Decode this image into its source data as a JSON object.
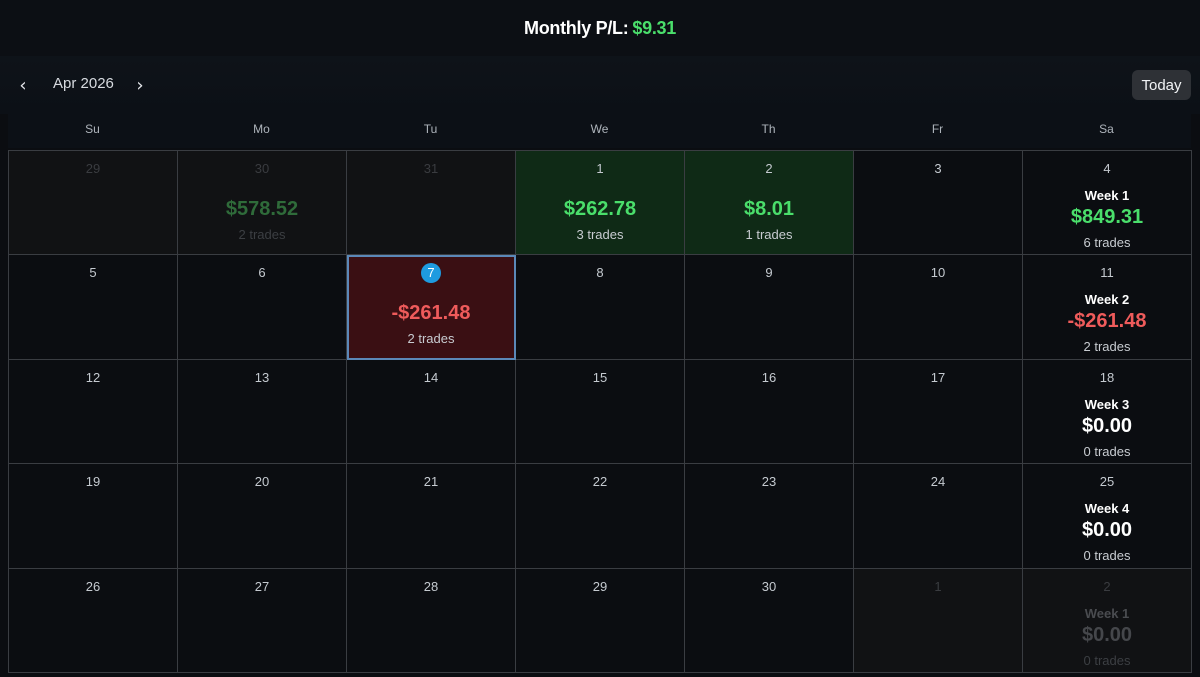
{
  "header": {
    "monthly_label": "Monthly P/L:",
    "monthly_value": "$9.31"
  },
  "nav": {
    "prev": "‹",
    "next": "›",
    "month": "Apr 2026",
    "today": "Today"
  },
  "weekdays": [
    "Su",
    "Mo",
    "Tu",
    "We",
    "Th",
    "Fr",
    "Sa"
  ],
  "colors": {
    "positive": "#4ade6b",
    "negative": "#ef5b5b",
    "today_marker": "#1e9be0"
  },
  "weeks": [
    {
      "days": [
        {
          "n": "29",
          "outside": true
        },
        {
          "n": "30",
          "outside": true,
          "pl": "$578.52",
          "trades": "2 trades",
          "tone": "green"
        },
        {
          "n": "31",
          "outside": true
        },
        {
          "n": "1",
          "win": true,
          "pl": "$262.78",
          "trades": "3 trades",
          "tone": "green"
        },
        {
          "n": "2",
          "win": true,
          "pl": "$8.01",
          "trades": "1 trades",
          "tone": "green"
        },
        {
          "n": "3"
        }
      ],
      "summary": {
        "n": "4",
        "label": "Week 1",
        "pl": "$849.31",
        "trades": "6 trades",
        "tone": "green"
      }
    },
    {
      "days": [
        {
          "n": "5"
        },
        {
          "n": "6"
        },
        {
          "n": "7",
          "today": true,
          "loss": true,
          "pl": "-$261.48",
          "trades": "2 trades",
          "tone": "red"
        },
        {
          "n": "8"
        },
        {
          "n": "9"
        },
        {
          "n": "10"
        }
      ],
      "summary": {
        "n": "11",
        "label": "Week 2",
        "pl": "-$261.48",
        "trades": "2 trades",
        "tone": "red"
      }
    },
    {
      "days": [
        {
          "n": "12"
        },
        {
          "n": "13"
        },
        {
          "n": "14"
        },
        {
          "n": "15"
        },
        {
          "n": "16"
        },
        {
          "n": "17"
        }
      ],
      "summary": {
        "n": "18",
        "label": "Week 3",
        "pl": "$0.00",
        "trades": "0 trades",
        "tone": "white"
      }
    },
    {
      "days": [
        {
          "n": "19"
        },
        {
          "n": "20"
        },
        {
          "n": "21"
        },
        {
          "n": "22"
        },
        {
          "n": "23"
        },
        {
          "n": "24"
        }
      ],
      "summary": {
        "n": "25",
        "label": "Week 4",
        "pl": "$0.00",
        "trades": "0 trades",
        "tone": "white"
      }
    },
    {
      "days": [
        {
          "n": "26"
        },
        {
          "n": "27"
        },
        {
          "n": "28"
        },
        {
          "n": "29"
        },
        {
          "n": "30"
        },
        {
          "n": "1",
          "outside": true
        }
      ],
      "summary": {
        "n": "2",
        "label": "Week 1",
        "pl": "$0.00",
        "trades": "0 trades",
        "tone": "white",
        "outside": true
      }
    }
  ]
}
